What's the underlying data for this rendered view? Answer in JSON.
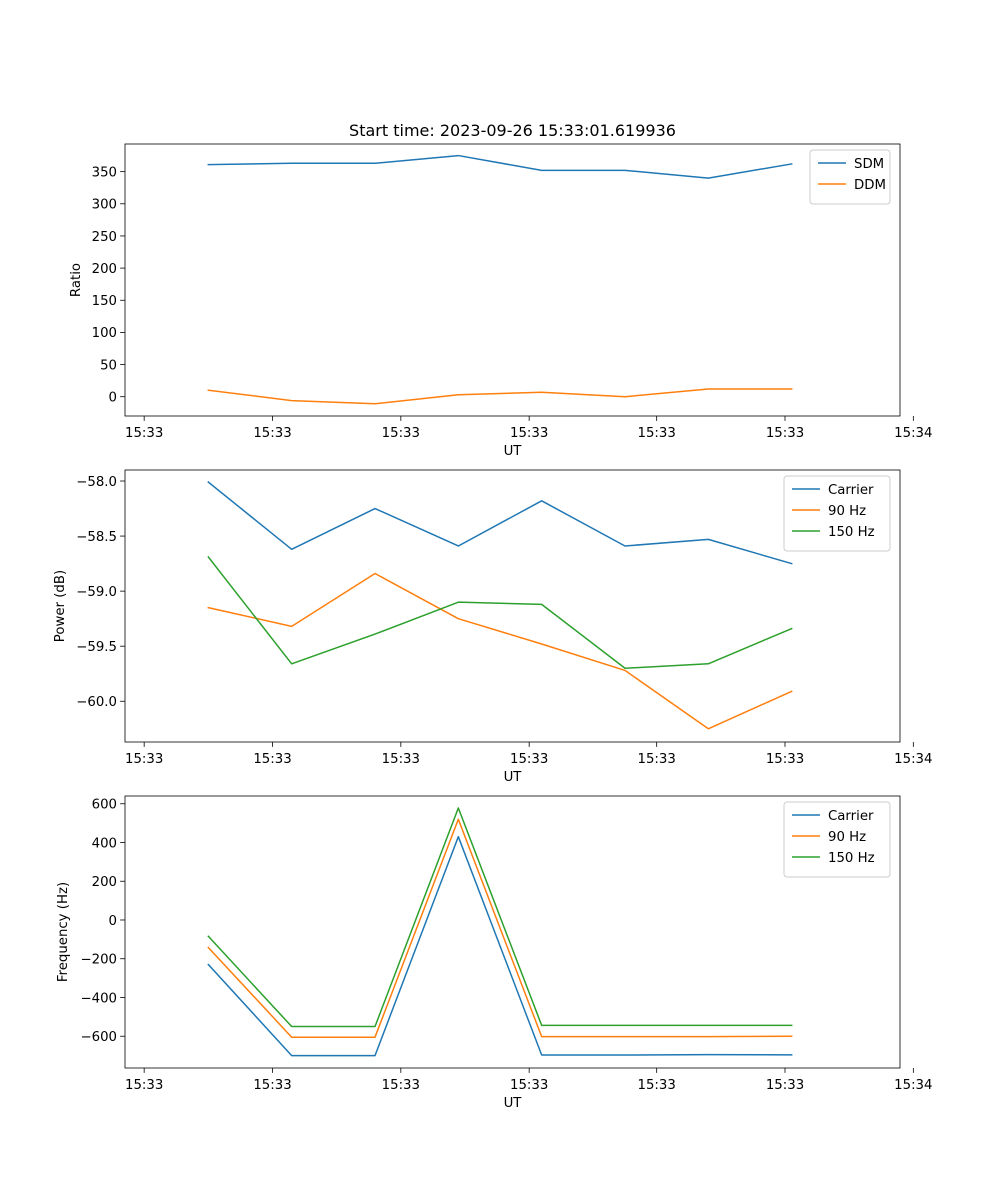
{
  "chart_data": [
    {
      "type": "line",
      "title": "Start time: 2023-09-26 15:33:01.619936",
      "xlabel": "UT",
      "ylabel": "Ratio",
      "xlim": [
        -1,
        8.3
      ],
      "ylim": [
        -30,
        393
      ],
      "x_tick_positions": [
        -0.77,
        0.77,
        2.31,
        3.85,
        5.38,
        6.92,
        8.46
      ],
      "x_tick_labels": [
        "15:33",
        "15:33",
        "15:33",
        "15:33",
        "15:33",
        "15:33",
        "15:34"
      ],
      "y_ticks": [
        0,
        50,
        100,
        150,
        200,
        250,
        300,
        350
      ],
      "legend_loc": "upper right",
      "x": [
        0,
        1,
        2,
        3,
        4,
        5,
        6,
        7
      ],
      "series": [
        {
          "name": "SDM",
          "color": "#1f77b4",
          "values": [
            361,
            363,
            363,
            375,
            352,
            352,
            340,
            362
          ]
        },
        {
          "name": "DDM",
          "color": "#ff7f0e",
          "values": [
            10,
            -6,
            -11,
            3,
            7,
            0,
            12,
            12
          ]
        }
      ]
    },
    {
      "type": "line",
      "title": "",
      "xlabel": "UT",
      "ylabel": "Power (dB)",
      "xlim": [
        -1,
        8.3
      ],
      "ylim": [
        -60.37,
        -57.9
      ],
      "x_tick_positions": [
        -0.77,
        0.77,
        2.31,
        3.85,
        5.38,
        6.92,
        8.46
      ],
      "x_tick_labels": [
        "15:33",
        "15:33",
        "15:33",
        "15:33",
        "15:33",
        "15:33",
        "15:34"
      ],
      "y_ticks": [
        -60.0,
        -59.5,
        -59.0,
        -58.5,
        -58.0
      ],
      "y_tick_labels": [
        "−60.0",
        "−59.5",
        "−59.0",
        "−58.5",
        "−58.0"
      ],
      "legend_loc": "upper right",
      "x": [
        0,
        1,
        2,
        3,
        4,
        5,
        6,
        7
      ],
      "series": [
        {
          "name": "Carrier",
          "color": "#1f77b4",
          "values": [
            -58.01,
            -58.62,
            -58.25,
            -58.59,
            -58.18,
            -58.59,
            -58.53,
            -58.75
          ]
        },
        {
          "name": "90 Hz",
          "color": "#ff7f0e",
          "values": [
            -59.15,
            -59.32,
            -58.84,
            -59.25,
            -59.48,
            -59.72,
            -60.25,
            -59.91
          ]
        },
        {
          "name": "150 Hz",
          "color": "#2ca02c",
          "values": [
            -58.69,
            -59.66,
            -59.39,
            -59.1,
            -59.12,
            -59.7,
            -59.66,
            -59.34
          ]
        }
      ]
    },
    {
      "type": "line",
      "title": "",
      "xlabel": "UT",
      "ylabel": "Frequency (Hz)",
      "xlim": [
        -1,
        8.3
      ],
      "ylim": [
        -764,
        640
      ],
      "x_tick_positions": [
        -0.77,
        0.77,
        2.31,
        3.85,
        5.38,
        6.92,
        8.46
      ],
      "x_tick_labels": [
        "15:33",
        "15:33",
        "15:33",
        "15:33",
        "15:33",
        "15:33",
        "15:34"
      ],
      "y_ticks": [
        -600,
        -400,
        -200,
        0,
        200,
        400,
        600
      ],
      "y_tick_labels": [
        "−600",
        "−400",
        "−200",
        "0",
        "200",
        "400",
        "600"
      ],
      "legend_loc": "upper right",
      "x": [
        0,
        1,
        2,
        3,
        4,
        5,
        6,
        7
      ],
      "series": [
        {
          "name": "Carrier",
          "color": "#1f77b4",
          "values": [
            -230,
            -700,
            -700,
            430,
            -697,
            -697,
            -695,
            -696
          ]
        },
        {
          "name": "90 Hz",
          "color": "#ff7f0e",
          "values": [
            -142,
            -605,
            -605,
            520,
            -602,
            -602,
            -602,
            -600
          ]
        },
        {
          "name": "150 Hz",
          "color": "#2ca02c",
          "values": [
            -84,
            -550,
            -550,
            578,
            -544,
            -544,
            -544,
            -544
          ]
        }
      ]
    }
  ]
}
